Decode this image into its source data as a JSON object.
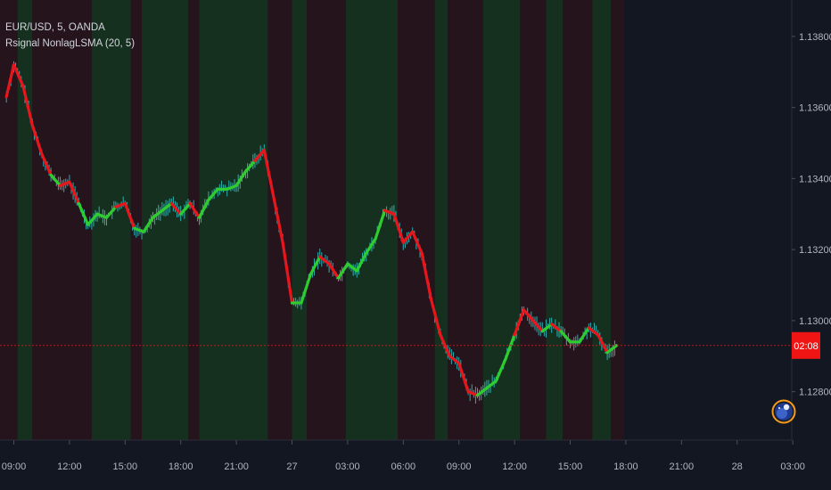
{
  "legend": {
    "symbol": "EUR/USD, 5, OANDA",
    "indicator": "Rsignal NonlagLSMA (20, 5)"
  },
  "colors": {
    "background": "#131722",
    "axis_text": "#b2b5be",
    "indicator_up": "#2ecc2e",
    "indicator_down": "#e8161c",
    "candle": "#2ec7c9",
    "zone_up": "#16301f",
    "zone_down": "#25141c",
    "price_line": "#c21419",
    "price_label_bg": "#f01515",
    "logo": "#f49b1c"
  },
  "icons": {
    "corner_logo": "moon-logo-icon"
  },
  "current_price": {
    "value": 1.1293,
    "countdown": "02:08"
  },
  "chart_data": {
    "type": "line",
    "title": "EUR/USD, 5, OANDA",
    "xlabel": "",
    "ylabel": "",
    "y_ticks": [
      "1.13800",
      "1.13600",
      "1.13400",
      "1.13200",
      "1.13000",
      "1.12800"
    ],
    "y_tick_values": [
      1.138,
      1.136,
      1.134,
      1.132,
      1.13,
      1.128
    ],
    "ylim": [
      1.1268,
      1.1389
    ],
    "x_ticks": [
      "09:00",
      "12:00",
      "15:00",
      "18:00",
      "21:00",
      "27",
      "03:00",
      "06:00",
      "09:00",
      "12:00",
      "15:00",
      "18:00",
      "21:00",
      "28",
      "03:00"
    ],
    "x_tick_hours": [
      0,
      3,
      6,
      9,
      12,
      15,
      18,
      21,
      24,
      27,
      30,
      33,
      36,
      39,
      42
    ],
    "xlim_hours": [
      -0.75,
      43.9
    ],
    "grid": false,
    "series": [
      {
        "name": "Rsignal NonlagLSMA (20, 5)",
        "x_hours": [
          -0.4,
          0.0,
          0.5,
          1.0,
          1.5,
          2.0,
          2.5,
          3.0,
          3.5,
          4.0,
          4.5,
          5.0,
          5.5,
          6.0,
          6.5,
          7.0,
          7.5,
          8.0,
          8.5,
          9.0,
          9.5,
          10.0,
          10.5,
          11.0,
          11.5,
          12.0,
          12.5,
          13.0,
          13.5,
          14.0,
          14.5,
          15.0,
          15.5,
          16.0,
          16.5,
          17.0,
          17.5,
          18.0,
          18.5,
          19.0,
          19.5,
          20.0,
          20.5,
          21.0,
          21.5,
          22.0,
          22.5,
          23.0,
          23.5,
          24.0,
          24.5,
          25.0,
          25.5,
          26.0,
          26.5,
          27.0,
          27.5,
          28.0,
          28.5,
          29.0,
          29.5,
          30.0,
          30.5,
          31.0,
          31.5,
          32.0,
          32.5
        ],
        "values": [
          1.1363,
          1.1372,
          1.1366,
          1.1355,
          1.1347,
          1.1341,
          1.1338,
          1.1339,
          1.1333,
          1.1327,
          1.133,
          1.1329,
          1.1332,
          1.1333,
          1.1326,
          1.1325,
          1.1329,
          1.1331,
          1.1333,
          1.133,
          1.1333,
          1.1329,
          1.1334,
          1.1337,
          1.1337,
          1.1338,
          1.1342,
          1.1345,
          1.1348,
          1.1335,
          1.1322,
          1.1305,
          1.1305,
          1.1313,
          1.1318,
          1.1316,
          1.1312,
          1.1316,
          1.1314,
          1.1319,
          1.1323,
          1.1331,
          1.133,
          1.1322,
          1.1325,
          1.1319,
          1.1306,
          1.1296,
          1.129,
          1.1288,
          1.128,
          1.1279,
          1.1281,
          1.1283,
          1.1289,
          1.1296,
          1.1303,
          1.13,
          1.1297,
          1.1299,
          1.1297,
          1.1294,
          1.1294,
          1.1298,
          1.1296,
          1.1291,
          1.1293
        ],
        "state": [
          "up",
          "down",
          "down",
          "down",
          "down",
          "down",
          "up",
          "down",
          "down",
          "up",
          "up",
          "up",
          "up",
          "down",
          "down",
          "up",
          "up",
          "up",
          "up",
          "down",
          "up",
          "down",
          "up",
          "up",
          "up",
          "up",
          "up",
          "up",
          "down",
          "down",
          "down",
          "down",
          "up",
          "up",
          "up",
          "down",
          "down",
          "up",
          "up",
          "up",
          "up",
          "up",
          "down",
          "down",
          "down",
          "down",
          "down",
          "down",
          "down",
          "down",
          "down",
          "down",
          "up",
          "up",
          "up",
          "up",
          "down",
          "down",
          "down",
          "up",
          "down",
          "up",
          "up",
          "up",
          "down",
          "down",
          "up"
        ]
      }
    ],
    "zones": [
      {
        "from": -0.75,
        "to": 0.2,
        "state": "down"
      },
      {
        "from": 0.2,
        "to": 1.0,
        "state": "up"
      },
      {
        "from": 1.0,
        "to": 2.8,
        "state": "down"
      },
      {
        "from": 2.8,
        "to": 4.2,
        "state": "down"
      },
      {
        "from": 4.2,
        "to": 6.3,
        "state": "up"
      },
      {
        "from": 6.3,
        "to": 6.9,
        "state": "down"
      },
      {
        "from": 6.9,
        "to": 9.4,
        "state": "up"
      },
      {
        "from": 9.4,
        "to": 10.0,
        "state": "down"
      },
      {
        "from": 10.0,
        "to": 13.7,
        "state": "up"
      },
      {
        "from": 13.7,
        "to": 15.0,
        "state": "down"
      },
      {
        "from": 15.0,
        "to": 15.8,
        "state": "up"
      },
      {
        "from": 15.8,
        "to": 17.9,
        "state": "down"
      },
      {
        "from": 17.9,
        "to": 20.7,
        "state": "up"
      },
      {
        "from": 20.7,
        "to": 22.7,
        "state": "down"
      },
      {
        "from": 22.7,
        "to": 23.4,
        "state": "up"
      },
      {
        "from": 23.4,
        "to": 25.3,
        "state": "down"
      },
      {
        "from": 25.3,
        "to": 27.3,
        "state": "up"
      },
      {
        "from": 27.3,
        "to": 28.7,
        "state": "down"
      },
      {
        "from": 28.7,
        "to": 29.6,
        "state": "up"
      },
      {
        "from": 29.6,
        "to": 31.2,
        "state": "down"
      },
      {
        "from": 31.2,
        "to": 32.2,
        "state": "up"
      },
      {
        "from": 32.2,
        "to": 32.9,
        "state": "down"
      }
    ]
  }
}
